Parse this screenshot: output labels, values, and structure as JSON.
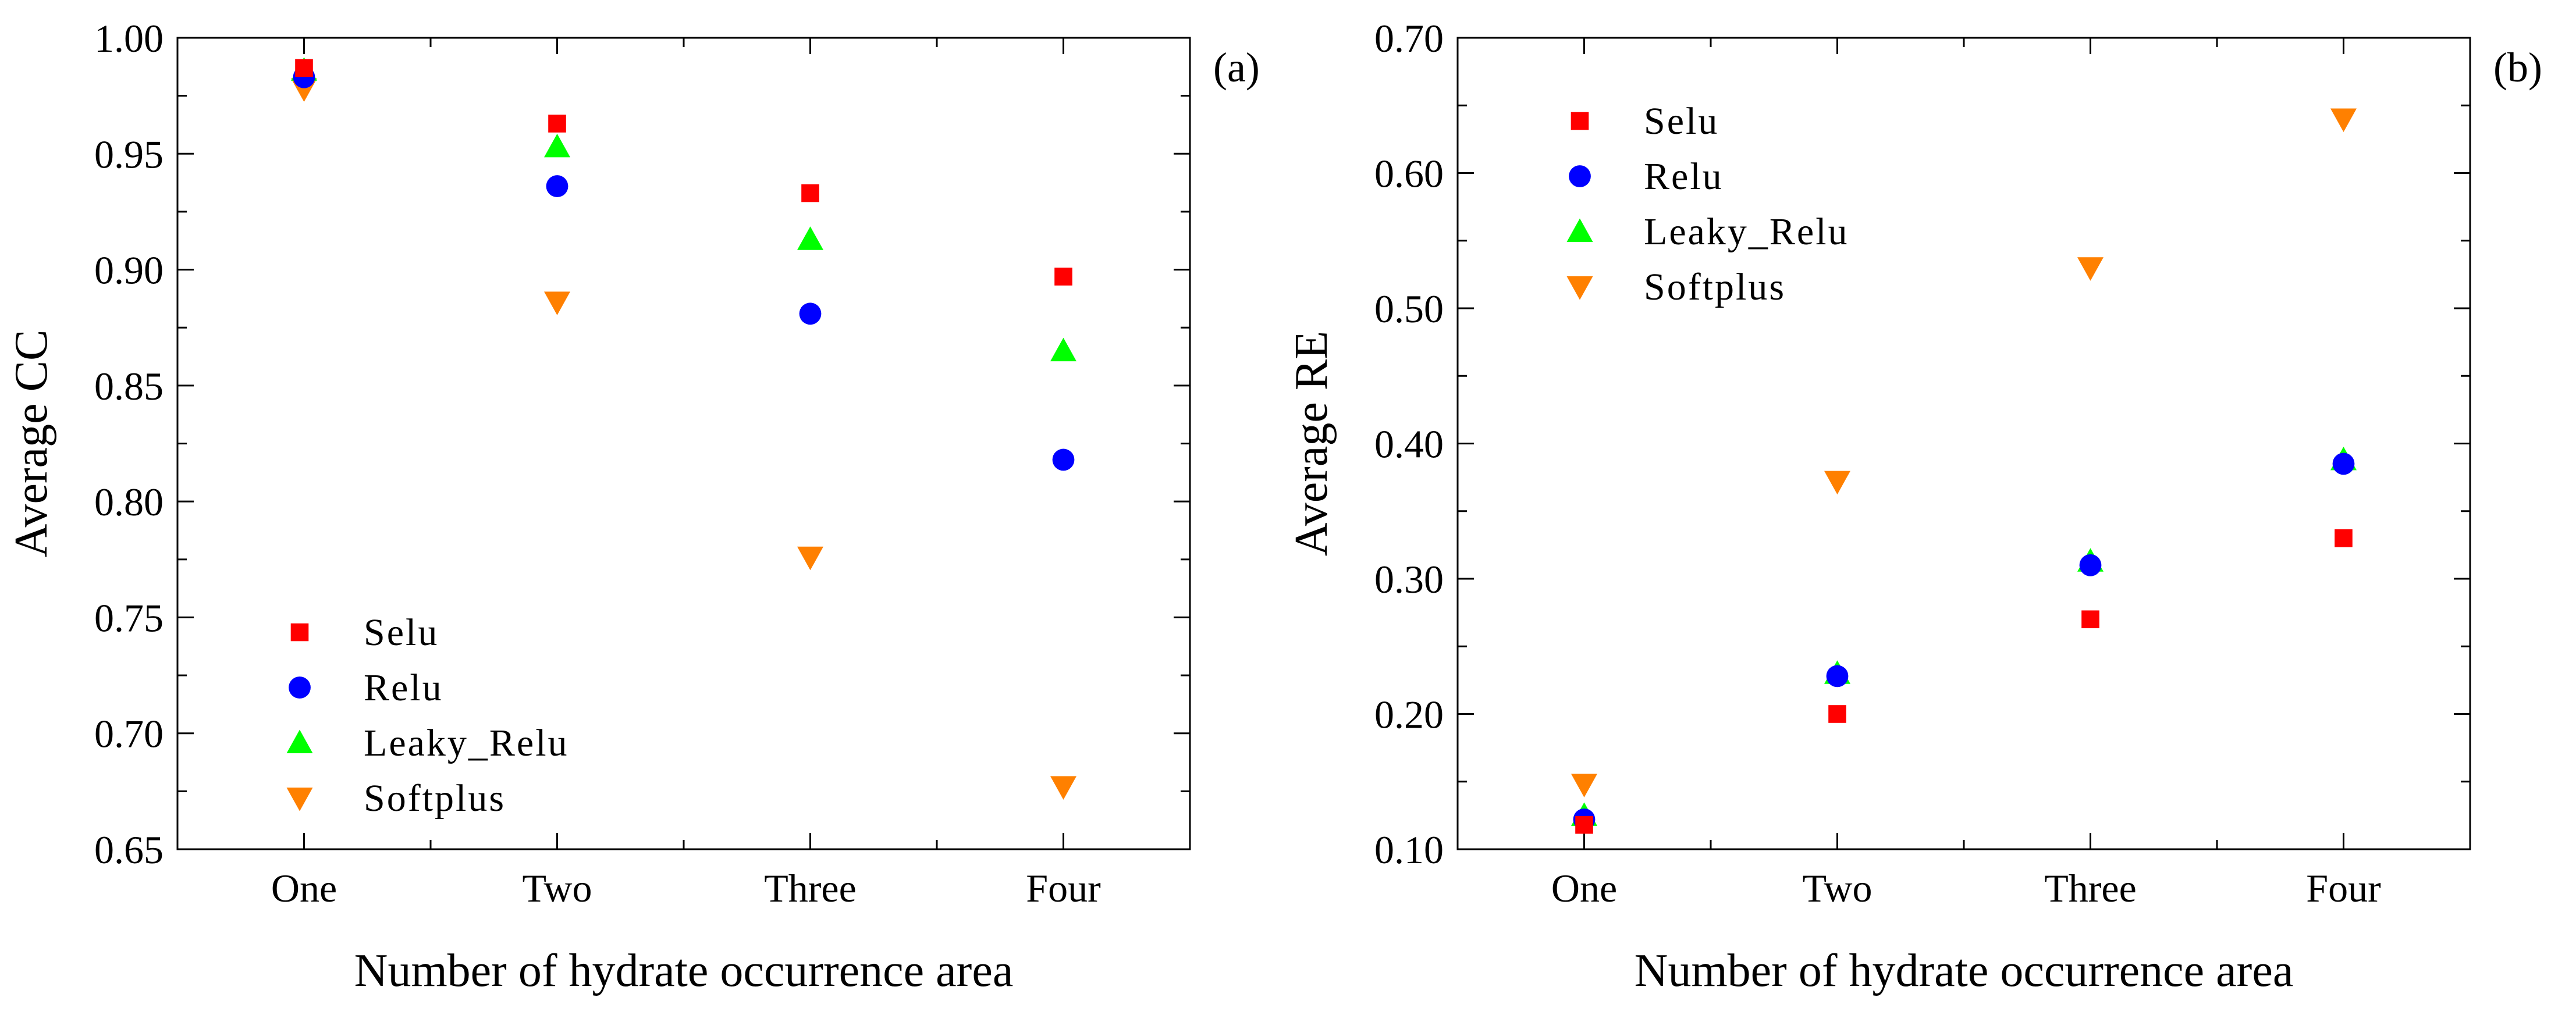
{
  "figure": {
    "panels": [
      {
        "label": "(a)",
        "ylabel": "Average CC",
        "xlabel": "Number of hydrate occurrence area"
      },
      {
        "label": "(b)",
        "ylabel": "Average RE",
        "xlabel": "Number of hydrate occurrence area"
      }
    ]
  },
  "chart_data": [
    {
      "type": "scatter",
      "title": "(a)",
      "xlabel": "Number of hydrate occurrence area",
      "ylabel": "Average CC",
      "categories": [
        "One",
        "Two",
        "Three",
        "Four"
      ],
      "ylim": [
        0.65,
        1.0
      ],
      "yticks": [
        0.65,
        0.7,
        0.75,
        0.8,
        0.85,
        0.9,
        0.95,
        1.0
      ],
      "ytick_labels": [
        "0.65",
        "0.70",
        "0.75",
        "0.80",
        "0.85",
        "0.90",
        "0.95",
        "1.00"
      ],
      "legend_position": "bottom-left",
      "series": [
        {
          "name": "Selu",
          "marker": "square",
          "color": "#ff0000",
          "values": [
            0.987,
            0.963,
            0.933,
            0.897
          ]
        },
        {
          "name": "Relu",
          "marker": "circle",
          "color": "#0000ff",
          "values": [
            0.983,
            0.936,
            0.881,
            0.818
          ]
        },
        {
          "name": "Leaky_Relu",
          "marker": "triangle-up",
          "color": "#00ff00",
          "values": [
            0.986,
            0.953,
            0.913,
            0.865
          ]
        },
        {
          "name": "Softplus",
          "marker": "triangle-down",
          "color": "#ff8000",
          "values": [
            0.978,
            0.886,
            0.776,
            0.677
          ]
        }
      ]
    },
    {
      "type": "scatter",
      "title": "(b)",
      "xlabel": "Number of hydrate occurrence area",
      "ylabel": "Average RE",
      "categories": [
        "One",
        "Two",
        "Three",
        "Four"
      ],
      "ylim": [
        0.1,
        0.7
      ],
      "yticks": [
        0.1,
        0.2,
        0.3,
        0.4,
        0.5,
        0.6,
        0.7
      ],
      "ytick_labels": [
        "0.10",
        "0.20",
        "0.30",
        "0.40",
        "0.50",
        "0.60",
        "0.70"
      ],
      "legend_position": "top-left",
      "series": [
        {
          "name": "Selu",
          "marker": "square",
          "color": "#ff0000",
          "values": [
            0.118,
            0.2,
            0.27,
            0.33
          ]
        },
        {
          "name": "Relu",
          "marker": "circle",
          "color": "#0000ff",
          "values": [
            0.122,
            0.228,
            0.31,
            0.385
          ]
        },
        {
          "name": "Leaky_Relu",
          "marker": "triangle-up",
          "color": "#00ff00",
          "values": [
            0.125,
            0.23,
            0.313,
            0.388
          ]
        },
        {
          "name": "Softplus",
          "marker": "triangle-down",
          "color": "#ff8000",
          "values": [
            0.148,
            0.372,
            0.53,
            0.64
          ]
        }
      ]
    }
  ]
}
